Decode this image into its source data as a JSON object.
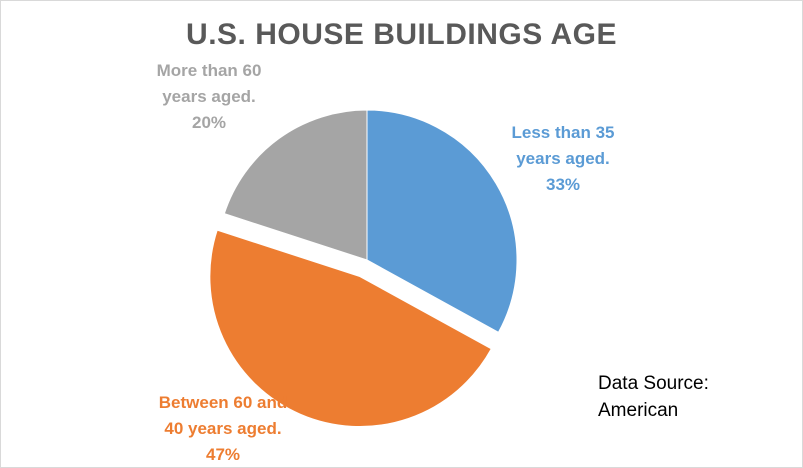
{
  "chart_data": {
    "type": "pie",
    "title": "U.S. HOUSE BUILDINGS AGE",
    "slices": [
      {
        "label_lines": [
          "Less than 35",
          "years aged."
        ],
        "value": 33,
        "value_label": "33%",
        "color": "#5b9bd5",
        "exploded": false
      },
      {
        "label_lines": [
          "Between 60 and",
          "40 years aged."
        ],
        "value": 47,
        "value_label": "47%",
        "color": "#ed7d31",
        "exploded": true
      },
      {
        "label_lines": [
          "More than 60",
          "years aged."
        ],
        "value": 20,
        "value_label": "20%",
        "color": "#a5a5a5",
        "exploded": false
      }
    ]
  },
  "source_note": {
    "line1": "Data Source:",
    "line2": "American"
  }
}
